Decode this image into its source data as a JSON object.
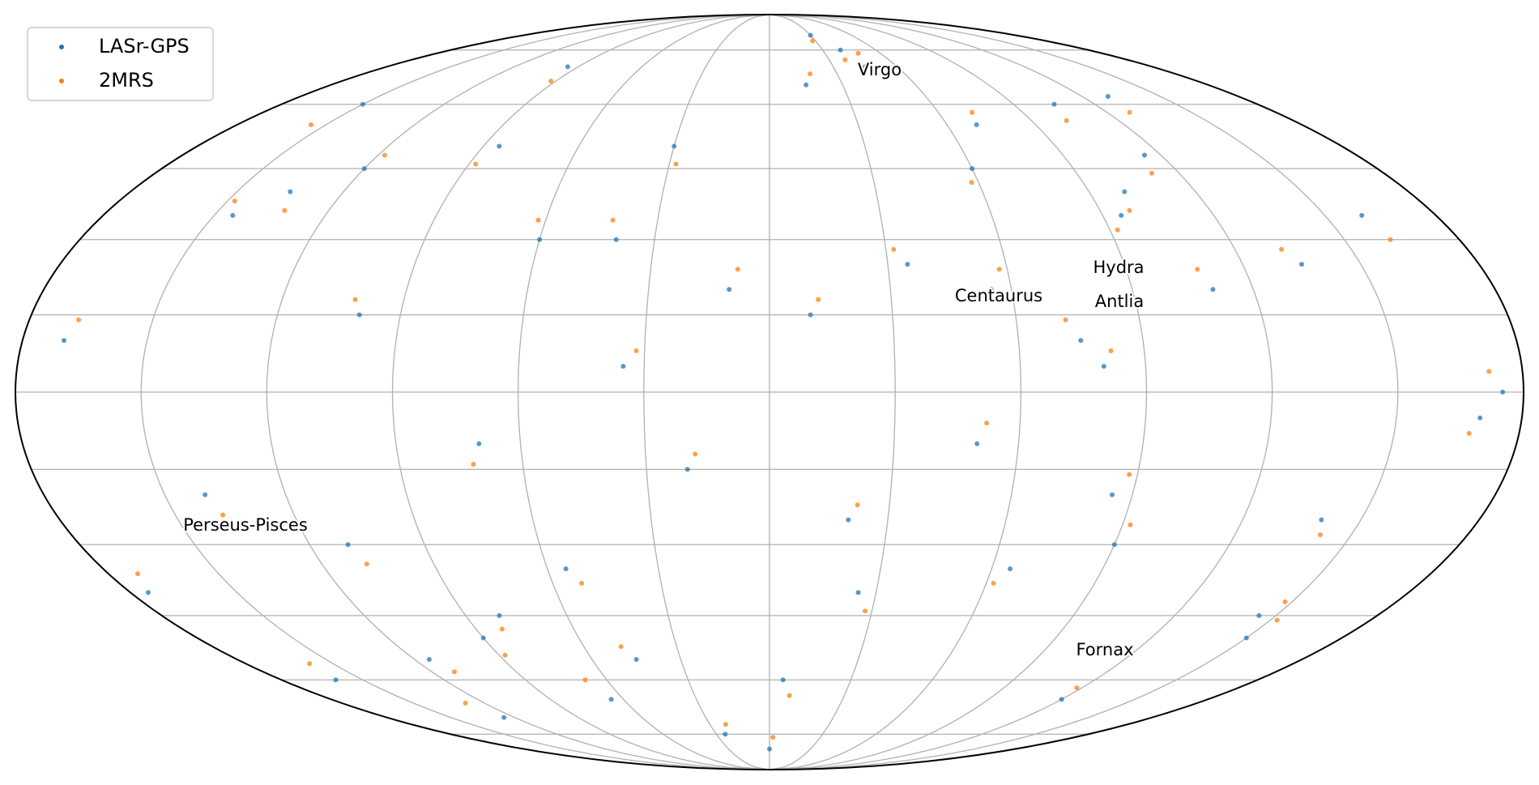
{
  "chart_data": {
    "type": "scatter",
    "projection": "mollweide",
    "grid": true,
    "legend": "upper left",
    "xlim": [
      -180,
      180
    ],
    "ylim": [
      -90,
      90
    ],
    "annotations": [
      "Virgo",
      "Centaurus",
      "Hydra",
      "Antlia",
      "Perseus-Pisces",
      "Fornax"
    ],
    "series": [
      {
        "name": "LASr-GPS",
        "color": "#1f77b4",
        "x": [
          -150,
          -120,
          -95,
          -60,
          -30,
          -10,
          15,
          40,
          70,
          100,
          130,
          160,
          -170,
          -140,
          -110,
          -80,
          -45,
          -20,
          5,
          25,
          50,
          80,
          110,
          140,
          170,
          -160,
          -125,
          -90,
          -55,
          -25,
          10,
          35,
          60,
          90,
          120,
          150,
          -135,
          -100,
          -70,
          -40,
          20,
          45,
          75,
          105,
          135,
          -175,
          -145,
          -115,
          -85,
          0,
          30,
          55,
          85,
          115,
          145,
          175,
          -65,
          -35,
          65,
          95
        ],
        "y": [
          60,
          45,
          70,
          30,
          50,
          20,
          65,
          75,
          55,
          40,
          62,
          35,
          10,
          -20,
          -30,
          -45,
          -55,
          -15,
          -60,
          -40,
          -10,
          5,
          20,
          -25,
          -5,
          -60,
          -70,
          -50,
          -35,
          -75,
          15,
          25,
          45,
          -30,
          -65,
          -50,
          40,
          15,
          -10,
          30,
          -25,
          70,
          10,
          60,
          25,
          -40,
          35,
          -55,
          50,
          -80,
          80,
          20,
          -20,
          48,
          -45,
          0,
          -65,
          5,
          -35,
          35
        ]
      },
      {
        "name": "2MRS",
        "color": "#ff7f0e",
        "x": [
          -155,
          -118,
          -92,
          -62,
          -28,
          -8,
          18,
          38,
          72,
          98,
          128,
          162,
          -168,
          -138,
          -108,
          -82,
          -48,
          -18,
          8,
          28,
          52,
          82,
          108,
          142,
          168,
          -158,
          -128,
          -88,
          -52,
          -22,
          12,
          32,
          58,
          92,
          118,
          152,
          -132,
          -102,
          -72,
          -42,
          22,
          48,
          72,
          102,
          132,
          -172,
          -148,
          -112,
          -88,
          2,
          28,
          58,
          88,
          112,
          148,
          172,
          -68,
          -32,
          62,
          92
        ],
        "y": [
          55,
          48,
          66,
          34,
          46,
          24,
          68,
          72,
          58,
          36,
          58,
          30,
          14,
          -24,
          -34,
          -48,
          -52,
          -12,
          -64,
          -44,
          -6,
          8,
          24,
          -28,
          -8,
          -56,
          -66,
          -54,
          -38,
          -72,
          18,
          28,
          42,
          -26,
          -62,
          -46,
          36,
          18,
          -14,
          34,
          -22,
          74,
          14,
          56,
          28,
          -36,
          38,
          -58,
          46,
          -76,
          78,
          24,
          -16,
          44,
          -42,
          4,
          -60,
          8,
          -38,
          32
        ]
      }
    ]
  }
}
